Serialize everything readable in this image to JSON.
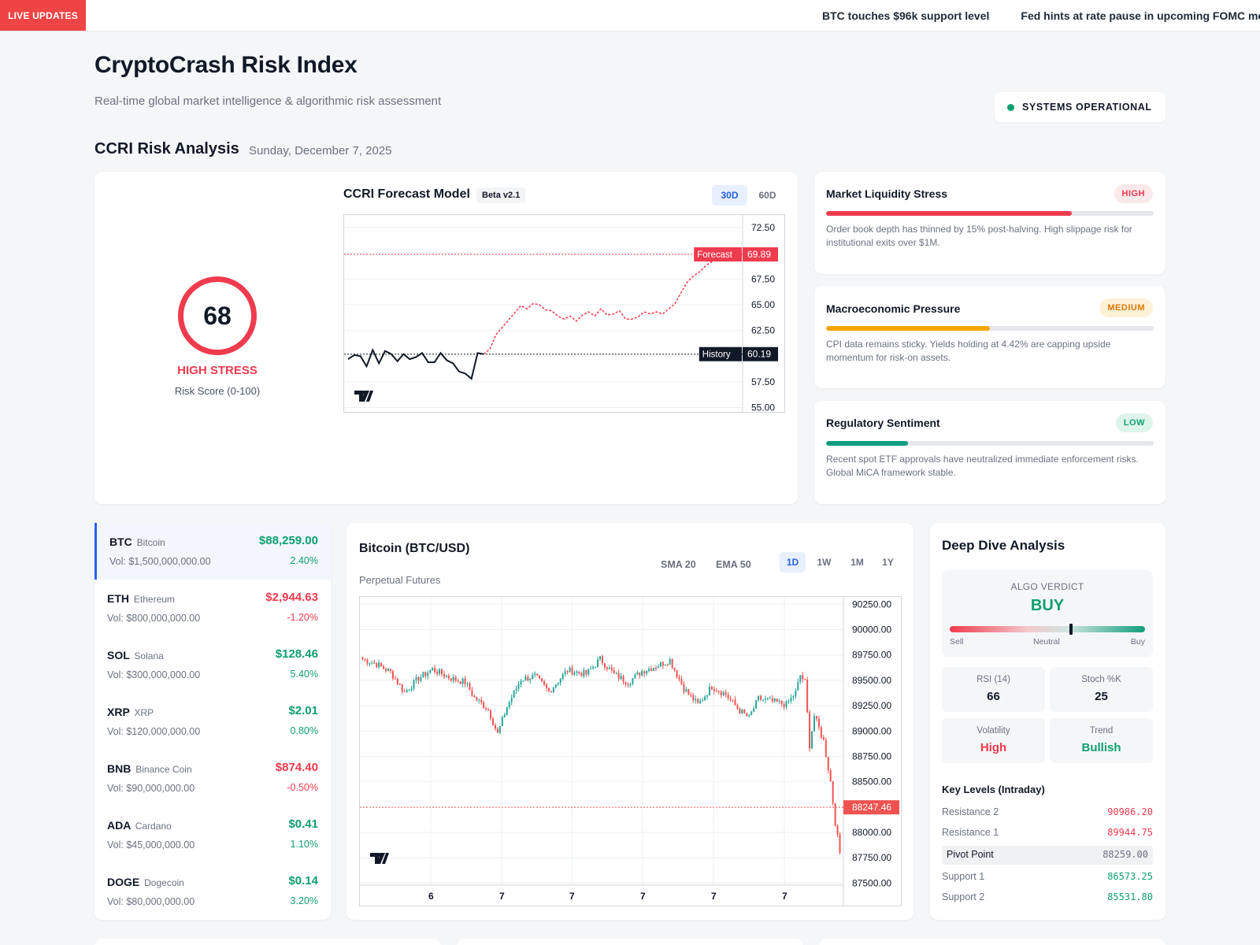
{
  "ticker": {
    "badge": "LIVE UPDATES",
    "items": [
      "BTC touches $96k support level",
      "Fed hints at rate pause in upcoming FOMC meeting"
    ]
  },
  "header": {
    "title": "CryptoCrash Risk Index",
    "subtitle": "Real-time global market intelligence & algorithmic risk assessment",
    "status": "SYSTEMS OPERATIONAL"
  },
  "section": {
    "title": "CCRI Risk Analysis",
    "date": "Sunday, December 7, 2025"
  },
  "gauge": {
    "score": "68",
    "label": "HIGH STRESS",
    "sub": "Risk Score (0-100)"
  },
  "forecast": {
    "title": "CCRI Forecast Model",
    "badge": "Beta v2.1",
    "tabs": [
      "30D",
      "60D"
    ],
    "active_tab": "30D",
    "forecast_tag": "Forecast",
    "forecast_value": "69.89",
    "history_tag": "History",
    "history_value": "60.19",
    "ticks": [
      "72.50",
      "70.00",
      "67.50",
      "65.00",
      "62.50",
      "60.00",
      "57.50",
      "55.00"
    ],
    "colors": {
      "history": "#111827",
      "forecast": "#ef3b4e"
    }
  },
  "chart_data": [
    {
      "type": "line",
      "title": "CCRI Forecast Model",
      "ylim": [
        54.5,
        73.8
      ],
      "series": [
        {
          "name": "History",
          "values": [
            59.7,
            60.1,
            60.0,
            59.0,
            60.6,
            59.3,
            60.5,
            60.2,
            59.5,
            60.2,
            59.7,
            59.9,
            60.3,
            59.4,
            59.4,
            60.3,
            59.6,
            59.3,
            58.5,
            58.3,
            57.8,
            60.3,
            60.19
          ]
        },
        {
          "name": "Forecast",
          "values": [
            60.19,
            60.7,
            62.1,
            62.8,
            63.5,
            64.2,
            64.9,
            64.6,
            65.1,
            65.0,
            64.5,
            64.4,
            63.9,
            63.6,
            63.9,
            63.4,
            64.0,
            64.3,
            63.9,
            64.6,
            64.0,
            64.1,
            64.4,
            63.6,
            63.6,
            63.8,
            64.3,
            64.1,
            64.3,
            64.1,
            64.6,
            65.1,
            66.2,
            67.2,
            67.8,
            68.2,
            68.8,
            69.2,
            69.89
          ]
        }
      ]
    },
    {
      "type": "candlestick",
      "title": "Bitcoin (BTC/USD)",
      "ylim": [
        87480,
        90330
      ],
      "x_ticks": [
        "6",
        "7",
        "7",
        "7",
        "7",
        "7"
      ],
      "last_price": "88247.46",
      "anchors": [
        [
          0,
          89710
        ],
        [
          6,
          89660
        ],
        [
          12,
          89580
        ],
        [
          18,
          89380
        ],
        [
          24,
          89520
        ],
        [
          30,
          89610
        ],
        [
          38,
          89520
        ],
        [
          44,
          89480
        ],
        [
          48,
          89330
        ],
        [
          54,
          89210
        ],
        [
          58,
          88970
        ],
        [
          62,
          89240
        ],
        [
          68,
          89510
        ],
        [
          74,
          89540
        ],
        [
          80,
          89390
        ],
        [
          88,
          89600
        ],
        [
          96,
          89560
        ],
        [
          102,
          89710
        ],
        [
          108,
          89560
        ],
        [
          114,
          89480
        ],
        [
          120,
          89590
        ],
        [
          126,
          89640
        ],
        [
          132,
          89700
        ],
        [
          138,
          89420
        ],
        [
          144,
          89260
        ],
        [
          150,
          89440
        ],
        [
          156,
          89360
        ],
        [
          162,
          89200
        ],
        [
          166,
          89130
        ],
        [
          170,
          89320
        ],
        [
          176,
          89290
        ],
        [
          182,
          89260
        ],
        [
          186,
          89380
        ],
        [
          188,
          89550
        ],
        [
          190,
          89480
        ],
        [
          192,
          88860
        ],
        [
          194,
          89150
        ],
        [
          198,
          88900
        ],
        [
          201,
          88500
        ],
        [
          203,
          88100
        ],
        [
          205,
          87800
        ]
      ]
    }
  ],
  "risk_factors": [
    {
      "title": "Market Liquidity Stress",
      "level": "HIGH",
      "fill_pct": 75,
      "color": "#ef3b4e",
      "badge_bg": "#fde8ea",
      "badge_fg": "#ef3b4e",
      "desc": "Order book depth has thinned by 15% post-halving. High slippage risk for institutional exits over $1M."
    },
    {
      "title": "Macroeconomic Pressure",
      "level": "MEDIUM",
      "fill_pct": 50,
      "color": "#f6a609",
      "badge_bg": "#fdf1d8",
      "badge_fg": "#d97706",
      "desc": "CPI data remains sticky. Yields holding at 4.42% are capping upside momentum for risk-on assets."
    },
    {
      "title": "Regulatory Sentiment",
      "level": "LOW",
      "fill_pct": 25,
      "color": "#129d7c",
      "badge_bg": "#def5ec",
      "badge_fg": "#0e9f6e",
      "desc": "Recent spot ETF approvals have neutralized immediate enforcement risks. Global MiCA framework stable."
    }
  ],
  "assets": [
    {
      "symbol": "BTC",
      "name": "Bitcoin",
      "vol": "Vol: $1,500,000,000.00",
      "price": "$88,259.00",
      "change": "2.40%",
      "up": true
    },
    {
      "symbol": "ETH",
      "name": "Ethereum",
      "vol": "Vol: $800,000,000.00",
      "price": "$2,944.63",
      "change": "-1.20%",
      "up": false
    },
    {
      "symbol": "SOL",
      "name": "Solana",
      "vol": "Vol: $300,000,000.00",
      "price": "$128.46",
      "change": "5.40%",
      "up": true
    },
    {
      "symbol": "XRP",
      "name": "XRP",
      "vol": "Vol: $120,000,000.00",
      "price": "$2.01",
      "change": "0.80%",
      "up": true
    },
    {
      "symbol": "BNB",
      "name": "Binance Coin",
      "vol": "Vol: $90,000,000.00",
      "price": "$874.40",
      "change": "-0.50%",
      "up": false
    },
    {
      "symbol": "ADA",
      "name": "Cardano",
      "vol": "Vol: $45,000,000.00",
      "price": "$0.41",
      "change": "1.10%",
      "up": true
    },
    {
      "symbol": "DOGE",
      "name": "Dogecoin",
      "vol": "Vol: $80,000,000.00",
      "price": "$0.14",
      "change": "3.20%",
      "up": true
    }
  ],
  "btc_chart": {
    "title": "Bitcoin (BTC/USD)",
    "subtitle": "Perpetual Futures",
    "indicators": [
      "SMA 20",
      "EMA 50"
    ],
    "ranges": [
      "1D",
      "1W",
      "1M",
      "1Y"
    ],
    "active_range": "1D",
    "ticks": [
      "90250.00",
      "90000.00",
      "89750.00",
      "89500.00",
      "89250.00",
      "89000.00",
      "88750.00",
      "88500.00",
      "88000.00",
      "87750.00",
      "87500.00"
    ],
    "price_tag": "88247.46",
    "colors": {
      "up": "#26a69a",
      "down": "#ef5350"
    }
  },
  "deep_dive": {
    "title": "Deep Dive Analysis",
    "verdict_label": "ALGO VERDICT",
    "verdict": "BUY",
    "verdict_position": 0.62,
    "scale": [
      "Sell",
      "Neutral",
      "Buy"
    ],
    "stats": [
      {
        "label": "RSI (14)",
        "value": "66",
        "color": "#111827"
      },
      {
        "label": "Stoch %K",
        "value": "25",
        "color": "#111827"
      },
      {
        "label": "Volatility",
        "value": "High",
        "color": "#ef3b4e"
      },
      {
        "label": "Trend",
        "value": "Bullish",
        "color": "#0e9f6e"
      }
    ],
    "key_levels_title": "Key Levels (Intraday)",
    "levels": [
      {
        "name": "Resistance 2",
        "value": "90986.20",
        "color": "#ef3b4e"
      },
      {
        "name": "Resistance 1",
        "value": "89944.75",
        "color": "#ef3b4e"
      },
      {
        "name": "Pivot Point",
        "value": "88259.00",
        "color": "#6b7280"
      },
      {
        "name": "Support 1",
        "value": "86573.25",
        "color": "#0e9f6e"
      },
      {
        "name": "Support 2",
        "value": "85531.80",
        "color": "#0e9f6e"
      }
    ]
  }
}
